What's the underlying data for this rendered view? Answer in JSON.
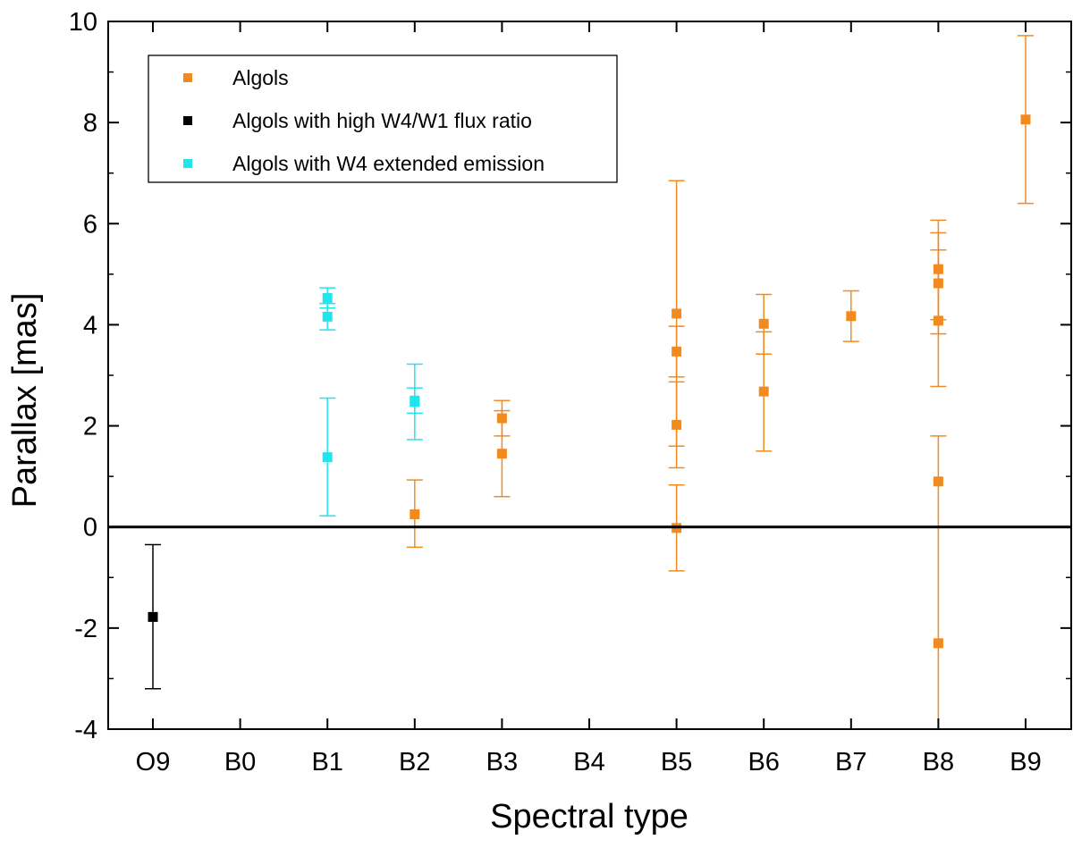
{
  "chart_data": {
    "type": "scatter",
    "xlabel": "Spectral type",
    "ylabel": "Parallax [mas]",
    "categories": [
      "O9",
      "B0",
      "B1",
      "B2",
      "B3",
      "B4",
      "B5",
      "B6",
      "B7",
      "B8",
      "B9"
    ],
    "ylim": [
      -4,
      10
    ],
    "yticks": [
      {
        "value": -4,
        "label": "-4"
      },
      {
        "value": -2,
        "label": "-2"
      },
      {
        "value": 0,
        "label": "0"
      },
      {
        "value": 2,
        "label": "2"
      },
      {
        "value": 4,
        "label": "4"
      },
      {
        "value": 6,
        "label": "6"
      },
      {
        "value": 8,
        "label": "8"
      },
      {
        "value": 10,
        "label": "10"
      }
    ],
    "zero_line": true,
    "grid": false,
    "legend_position": "top-left",
    "series": [
      {
        "name": "Algols",
        "color": "#f28b1f",
        "points": [
          {
            "x": "B2",
            "y": 0.25,
            "low": -0.4,
            "high": 0.93
          },
          {
            "x": "B3",
            "y": 2.15,
            "low": 1.8,
            "high": 2.5
          },
          {
            "x": "B3",
            "y": 1.45,
            "low": 0.6,
            "high": 2.3
          },
          {
            "x": "B5",
            "y": 4.22,
            "low": 1.6,
            "high": 6.85
          },
          {
            "x": "B5",
            "y": 3.47,
            "low": 2.97,
            "high": 3.97
          },
          {
            "x": "B5",
            "y": 2.02,
            "low": 1.17,
            "high": 2.87
          },
          {
            "x": "B5",
            "y": -0.02,
            "low": -0.87,
            "high": 0.83
          },
          {
            "x": "B6",
            "y": 4.02,
            "low": 3.42,
            "high": 4.6
          },
          {
            "x": "B6",
            "y": 2.68,
            "low": 1.5,
            "high": 3.86
          },
          {
            "x": "B7",
            "y": 4.17,
            "low": 3.67,
            "high": 4.67
          },
          {
            "x": "B8",
            "y": 5.1,
            "low": 4.1,
            "high": 6.07
          },
          {
            "x": "B8",
            "y": 4.82,
            "low": 3.82,
            "high": 5.82
          },
          {
            "x": "B8",
            "y": 4.08,
            "low": 2.78,
            "high": 5.48
          },
          {
            "x": "B8",
            "y": 0.9,
            "low": 0.0,
            "high": 1.8
          },
          {
            "x": "B8",
            "y": -2.3,
            "low": -4.0,
            "high": 0.0
          },
          {
            "x": "B9",
            "y": 8.06,
            "low": 6.4,
            "high": 9.72
          }
        ]
      },
      {
        "name": "Algols with high W4/W1 flux ratio",
        "color": "#000000",
        "points": [
          {
            "x": "O9",
            "y": -1.78,
            "low": -3.2,
            "high": -0.35
          }
        ]
      },
      {
        "name": "Algols with W4 extended emission",
        "color": "#22e5ec",
        "points": [
          {
            "x": "B1",
            "y": 4.53,
            "low": 4.33,
            "high": 4.73
          },
          {
            "x": "B1",
            "y": 4.16,
            "low": 3.9,
            "high": 4.42
          },
          {
            "x": "B1",
            "y": 1.38,
            "low": 0.22,
            "high": 2.55
          },
          {
            "x": "B2",
            "y": 2.5,
            "low": 1.73,
            "high": 3.22
          },
          {
            "x": "B2",
            "y": 2.47,
            "low": 2.25,
            "high": 2.75
          }
        ]
      }
    ]
  }
}
